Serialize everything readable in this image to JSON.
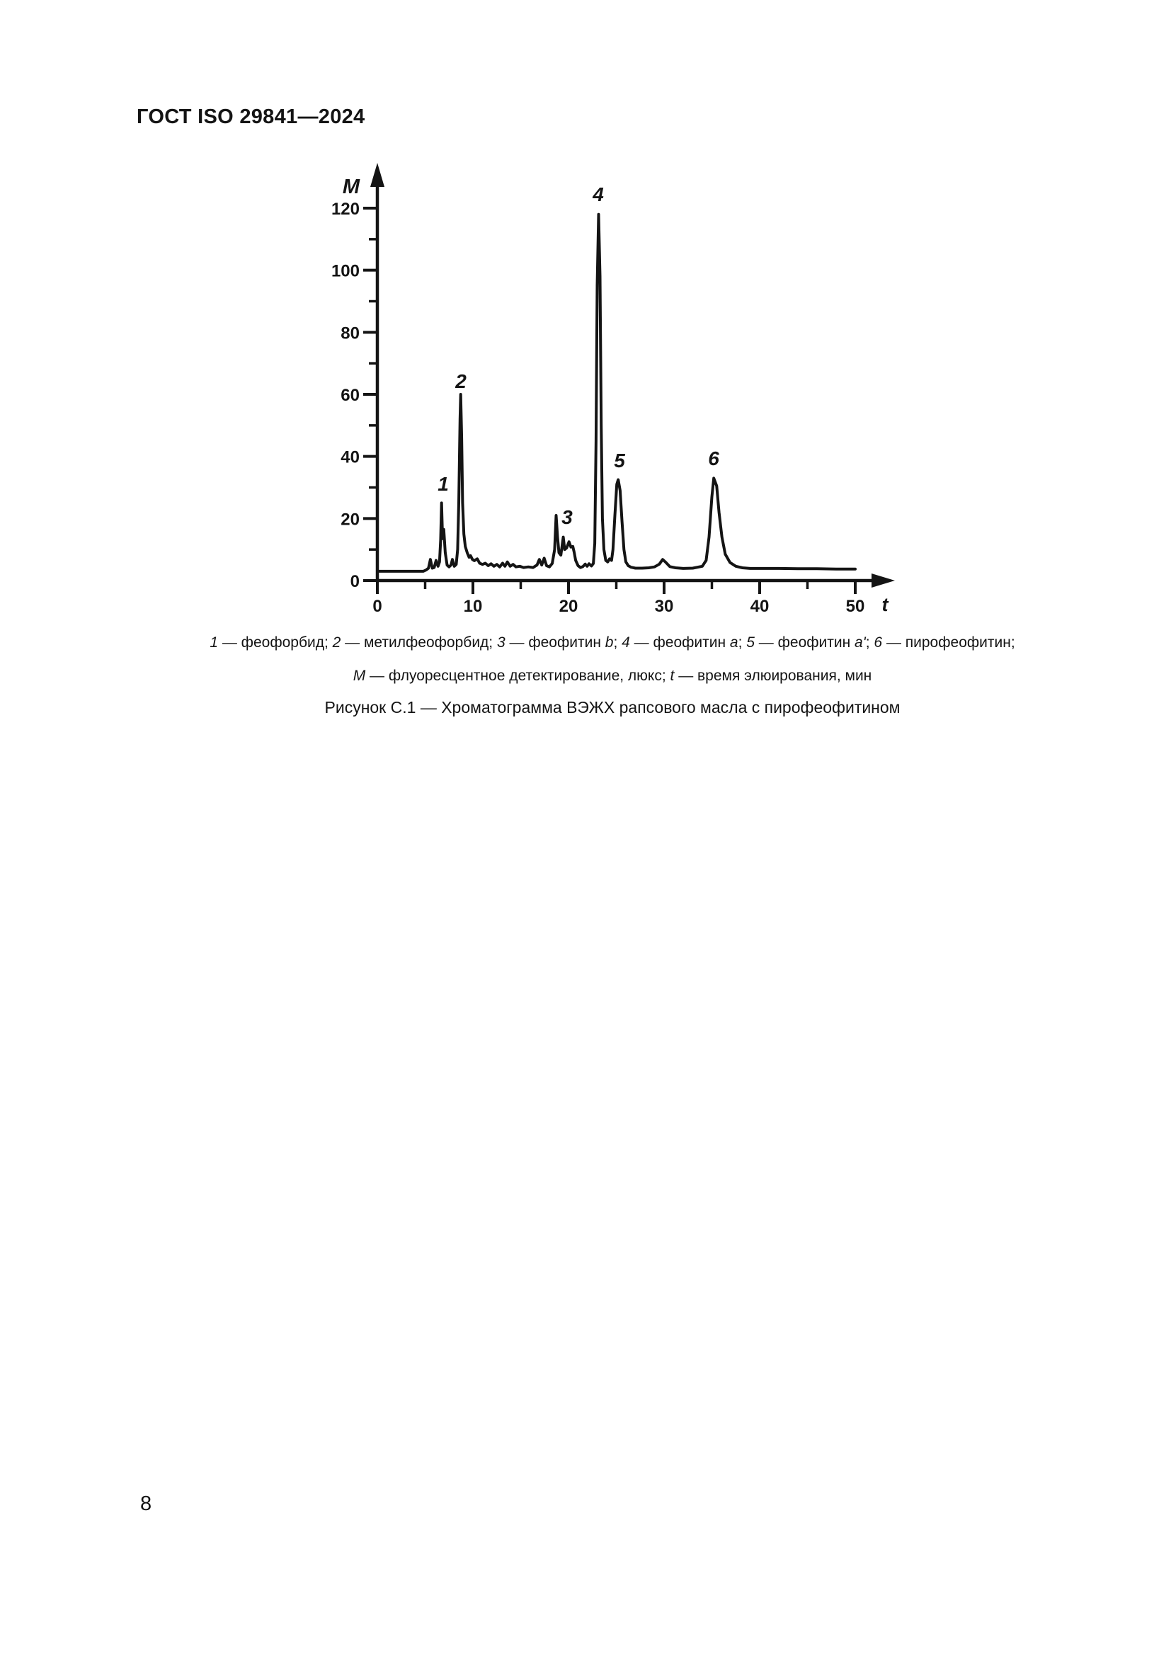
{
  "header": {
    "title": "ГОСТ ISO 29841—2024"
  },
  "chart_data": {
    "type": "line",
    "title": "Хроматограмма ВЭЖХ рапсового масла с пирофеофитином",
    "xlabel": "t",
    "ylabel": "M",
    "x_axis_meaning": "время элюирования, мин",
    "y_axis_meaning": "флуоресцентное детектирование, люкс",
    "xlim": [
      0,
      52
    ],
    "ylim": [
      0,
      130
    ],
    "grid": false,
    "line_color": "#141414",
    "x_ticks": [
      {
        "value": 0,
        "label": "0"
      },
      {
        "value": 10,
        "label": "10"
      },
      {
        "value": 20,
        "label": "20"
      },
      {
        "value": 30,
        "label": "30"
      },
      {
        "value": 40,
        "label": "40"
      },
      {
        "value": 50,
        "label": "50"
      }
    ],
    "x_minor_ticks": [
      5,
      15,
      25,
      35,
      45
    ],
    "y_ticks": [
      {
        "value": 0,
        "label": "0"
      },
      {
        "value": 20,
        "label": "20"
      },
      {
        "value": 40,
        "label": "40"
      },
      {
        "value": 60,
        "label": "60"
      },
      {
        "value": 80,
        "label": "80"
      },
      {
        "value": 100,
        "label": "100"
      },
      {
        "value": 120,
        "label": "120"
      }
    ],
    "y_minor_ticks": [
      10,
      30,
      50,
      70,
      90,
      110
    ],
    "peaks": [
      {
        "label": "1",
        "t": 6.7,
        "height": 25,
        "name": "феофорбид"
      },
      {
        "label": "2",
        "t": 8.7,
        "height": 60,
        "name": "метилфеофорбид"
      },
      {
        "label": "3",
        "t": 18.7,
        "height": 21,
        "name": "феофитин b"
      },
      {
        "label": "4",
        "t": 23.2,
        "height": 118,
        "name": "феофитин a"
      },
      {
        "label": "5",
        "t": 25.2,
        "height": 33,
        "name": "феофитин a'"
      },
      {
        "label": "6",
        "t": 35.2,
        "height": 33,
        "name": "пирофеофитин"
      }
    ],
    "curve": [
      [
        0,
        3
      ],
      [
        1,
        3
      ],
      [
        2,
        3
      ],
      [
        3,
        3
      ],
      [
        4,
        3
      ],
      [
        4.8,
        3
      ],
      [
        5.1,
        3.4
      ],
      [
        5.35,
        4
      ],
      [
        5.55,
        6.8
      ],
      [
        5.75,
        4
      ],
      [
        5.95,
        4.2
      ],
      [
        6.15,
        6.5
      ],
      [
        6.35,
        4.6
      ],
      [
        6.5,
        6
      ],
      [
        6.62,
        13
      ],
      [
        6.72,
        25
      ],
      [
        6.82,
        13.5
      ],
      [
        6.95,
        16.5
      ],
      [
        7.1,
        9
      ],
      [
        7.3,
        5
      ],
      [
        7.5,
        4.4
      ],
      [
        7.7,
        5
      ],
      [
        7.85,
        6.8
      ],
      [
        8.05,
        4.6
      ],
      [
        8.25,
        5.2
      ],
      [
        8.4,
        10
      ],
      [
        8.52,
        25
      ],
      [
        8.65,
        52
      ],
      [
        8.72,
        60
      ],
      [
        8.82,
        46
      ],
      [
        8.92,
        25
      ],
      [
        9.05,
        15
      ],
      [
        9.2,
        11
      ],
      [
        9.4,
        9
      ],
      [
        9.6,
        7.5
      ],
      [
        9.75,
        8
      ],
      [
        9.95,
        6.8
      ],
      [
        10.15,
        6.4
      ],
      [
        10.45,
        7
      ],
      [
        10.7,
        5.6
      ],
      [
        11,
        5.2
      ],
      [
        11.3,
        5.6
      ],
      [
        11.6,
        4.8
      ],
      [
        11.9,
        5.4
      ],
      [
        12.2,
        4.6
      ],
      [
        12.5,
        5.2
      ],
      [
        12.8,
        4.4
      ],
      [
        13.1,
        5.6
      ],
      [
        13.35,
        4.6
      ],
      [
        13.6,
        6
      ],
      [
        13.9,
        4.6
      ],
      [
        14.2,
        5.2
      ],
      [
        14.5,
        4.4
      ],
      [
        14.9,
        4.6
      ],
      [
        15.3,
        4.2
      ],
      [
        15.8,
        4.4
      ],
      [
        16.3,
        4.2
      ],
      [
        16.7,
        5
      ],
      [
        16.95,
        6.8
      ],
      [
        17.2,
        5
      ],
      [
        17.45,
        7.2
      ],
      [
        17.7,
        4.8
      ],
      [
        18,
        4.4
      ],
      [
        18.3,
        5.5
      ],
      [
        18.55,
        10
      ],
      [
        18.7,
        21
      ],
      [
        18.85,
        14
      ],
      [
        19,
        9
      ],
      [
        19.2,
        8.2
      ],
      [
        19.45,
        14
      ],
      [
        19.6,
        10
      ],
      [
        19.8,
        10.5
      ],
      [
        20.05,
        12.5
      ],
      [
        20.25,
        10.8
      ],
      [
        20.45,
        11
      ],
      [
        20.6,
        9
      ],
      [
        20.75,
        6.5
      ],
      [
        21,
        4.8
      ],
      [
        21.25,
        4.2
      ],
      [
        21.5,
        4.5
      ],
      [
        21.75,
        5.3
      ],
      [
        21.95,
        4.6
      ],
      [
        22.15,
        5.4
      ],
      [
        22.4,
        4.7
      ],
      [
        22.6,
        5.5
      ],
      [
        22.75,
        12
      ],
      [
        22.88,
        45
      ],
      [
        23,
        95
      ],
      [
        23.15,
        118
      ],
      [
        23.3,
        98
      ],
      [
        23.42,
        50
      ],
      [
        23.55,
        20
      ],
      [
        23.7,
        10
      ],
      [
        23.9,
        6.5
      ],
      [
        24.1,
        6
      ],
      [
        24.3,
        7
      ],
      [
        24.5,
        6.5
      ],
      [
        24.65,
        10
      ],
      [
        24.85,
        21
      ],
      [
        25.05,
        31
      ],
      [
        25.2,
        32.5
      ],
      [
        25.4,
        29
      ],
      [
        25.6,
        19
      ],
      [
        25.8,
        10
      ],
      [
        26,
        6
      ],
      [
        26.25,
        4.8
      ],
      [
        26.55,
        4.3
      ],
      [
        27,
        4
      ],
      [
        27.7,
        4
      ],
      [
        28.4,
        4.1
      ],
      [
        29,
        4.4
      ],
      [
        29.5,
        5.3
      ],
      [
        29.85,
        6.8
      ],
      [
        30.2,
        5.8
      ],
      [
        30.6,
        4.5
      ],
      [
        31.2,
        4.1
      ],
      [
        32,
        3.9
      ],
      [
        33,
        4
      ],
      [
        34,
        4.6
      ],
      [
        34.4,
        6.5
      ],
      [
        34.7,
        14
      ],
      [
        35,
        27
      ],
      [
        35.2,
        33
      ],
      [
        35.5,
        30.5
      ],
      [
        35.75,
        22
      ],
      [
        36.05,
        14
      ],
      [
        36.4,
        8.5
      ],
      [
        36.9,
        5.8
      ],
      [
        37.5,
        4.6
      ],
      [
        38.2,
        4.1
      ],
      [
        39,
        3.9
      ],
      [
        40,
        3.9
      ],
      [
        42,
        3.9
      ],
      [
        44,
        3.8
      ],
      [
        46,
        3.8
      ],
      [
        48,
        3.7
      ],
      [
        50,
        3.7
      ]
    ]
  },
  "captions": {
    "legend_line1": [
      {
        "t": "1",
        "i": true
      },
      {
        "t": " — феофорбид; ",
        "i": false
      },
      {
        "t": "2",
        "i": true
      },
      {
        "t": " — метилфеофорбид; ",
        "i": false
      },
      {
        "t": "3",
        "i": true
      },
      {
        "t": " — феофитин ",
        "i": false
      },
      {
        "t": "b",
        "i": true
      },
      {
        "t": "; ",
        "i": false
      },
      {
        "t": "4",
        "i": true
      },
      {
        "t": " — феофитин ",
        "i": false
      },
      {
        "t": "a",
        "i": true
      },
      {
        "t": "; ",
        "i": false
      },
      {
        "t": "5",
        "i": true
      },
      {
        "t": " — феофитин ",
        "i": false
      },
      {
        "t": "a'",
        "i": true
      },
      {
        "t": "; ",
        "i": false
      },
      {
        "t": "6",
        "i": true
      },
      {
        "t": " — пирофеофитин;",
        "i": false
      }
    ],
    "legend_line2": [
      {
        "t": "M",
        "i": true
      },
      {
        "t": " — флуоресцентное детектирование, люкс; ",
        "i": false
      },
      {
        "t": "t",
        "i": true
      },
      {
        "t": " — время элюирования, мин",
        "i": false
      }
    ]
  },
  "figure": {
    "title": "Рисунок С.1 — Хроматограмма ВЭЖХ рапсового масла с пирофеофитином"
  },
  "footer": {
    "page_number": "8"
  }
}
